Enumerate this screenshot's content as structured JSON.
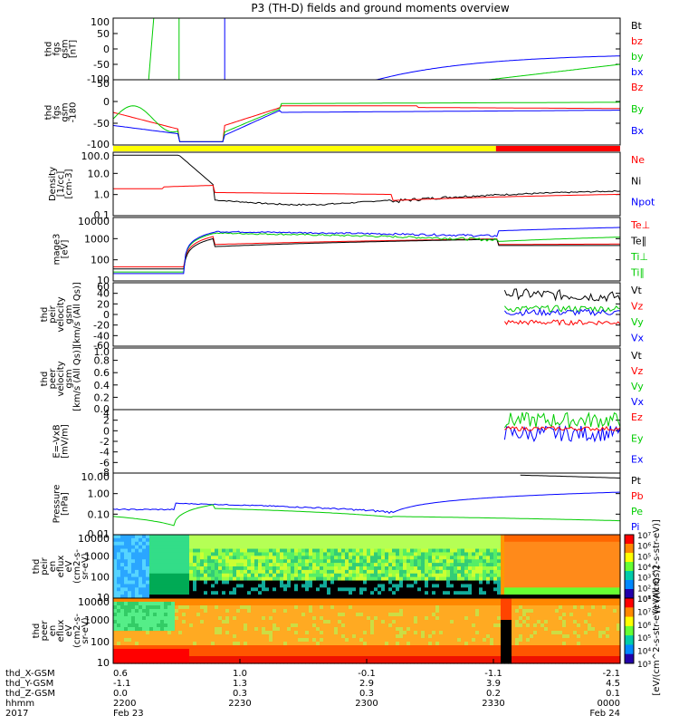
{
  "title": "P3 (TH-D) fields and ground moments overview",
  "colors": {
    "black": "#000000",
    "red": "#ff0000",
    "green": "#00cc00",
    "blue": "#0000ff",
    "yellow": "#ffff00"
  },
  "chart_data": [
    {
      "type": "line",
      "name": "fgs",
      "ylabel": [
        "thd",
        "fgs",
        "gsm",
        "[nT]"
      ],
      "ylim": [
        -100,
        100
      ],
      "ticks": [
        "100",
        "50",
        "0",
        "-50",
        "-100"
      ],
      "legend": [
        {
          "text": "Bt",
          "c": "black"
        },
        {
          "text": "bz",
          "c": "red"
        },
        {
          "text": "by",
          "c": "green"
        },
        {
          "text": "bx",
          "c": "blue"
        }
      ]
    },
    {
      "type": "line",
      "name": "fge",
      "ylabel": [
        "thd",
        "fgs",
        "gsm",
        "-180"
      ],
      "ylim": [
        -120,
        80
      ],
      "ticks": [
        "50",
        "0",
        "-50",
        "-100"
      ],
      "legend": [
        {
          "text": "Bz",
          "c": "red"
        },
        {
          "text": "By",
          "c": "green"
        },
        {
          "text": "Bx",
          "c": "blue"
        }
      ]
    },
    {
      "type": "line",
      "name": "density",
      "ylabel": [
        "Density",
        "[1/cc]",
        "[cm-3]"
      ],
      "scale": "log",
      "ylim": [
        0.05,
        300
      ],
      "ticks": [
        "100.0",
        "10.0",
        "1.0",
        "0.1"
      ],
      "legend": [
        {
          "text": "Ne",
          "c": "red"
        },
        {
          "text": "Ni",
          "c": "black"
        },
        {
          "text": "Npot",
          "c": "blue"
        }
      ]
    },
    {
      "type": "line",
      "name": "temp",
      "ylabel": [
        "mage3",
        "[eV]"
      ],
      "scale": "log",
      "ylim": [
        3,
        15000
      ],
      "ticks": [
        "10000",
        "1000",
        "100",
        "10"
      ],
      "legend": [
        {
          "text": "Te⊥",
          "c": "red"
        },
        {
          "text": "Te∥",
          "c": "black"
        },
        {
          "text": "Ti⊥",
          "c": "green"
        },
        {
          "text": "Ti∥",
          "c": "green"
        }
      ]
    },
    {
      "type": "line",
      "name": "peir_vel",
      "ylabel": [
        "thd",
        "peir",
        "velocity",
        "gsm",
        "[km/s (All Qs)]"
      ],
      "ylim": [
        -60,
        60
      ],
      "ticks": [
        "60",
        "40",
        "20",
        "0",
        "-20",
        "-40",
        "-60"
      ],
      "legend": [
        {
          "text": "Vt",
          "c": "black"
        },
        {
          "text": "Vz",
          "c": "red"
        },
        {
          "text": "Vy",
          "c": "green"
        },
        {
          "text": "Vx",
          "c": "blue"
        }
      ]
    },
    {
      "type": "line",
      "name": "peer_vel",
      "ylabel": [
        "thd",
        "peer",
        "velocity",
        "gsm",
        "[km/s (All Qs)]"
      ],
      "ylim": [
        0,
        1
      ],
      "ticks": [
        "1.0",
        "0.8",
        "0.6",
        "0.4",
        "0.2",
        "0.0"
      ],
      "legend": [
        {
          "text": "Vt",
          "c": "black"
        },
        {
          "text": "Vz",
          "c": "red"
        },
        {
          "text": "Vy",
          "c": "green"
        },
        {
          "text": "Vx",
          "c": "blue"
        }
      ]
    },
    {
      "type": "line",
      "name": "efield",
      "ylabel": [
        "E=-VxB",
        "[mV/m]"
      ],
      "ylim": [
        -8,
        4
      ],
      "ticks": [
        "4",
        "2",
        "0",
        "-2",
        "-4",
        "-6",
        "-8"
      ],
      "legend": [
        {
          "text": "Ez",
          "c": "red"
        },
        {
          "text": "Ey",
          "c": "green"
        },
        {
          "text": "Ex",
          "c": "blue"
        }
      ]
    },
    {
      "type": "line",
      "name": "pressure",
      "ylabel": [
        "Pressure",
        "[nPa]"
      ],
      "scale": "log",
      "ylim": [
        0.004,
        20
      ],
      "ticks": [
        "10.00",
        "1.00",
        "0.10",
        "0.01"
      ],
      "legend": [
        {
          "text": "Pt",
          "c": "black"
        },
        {
          "text": "Pb",
          "c": "red"
        },
        {
          "text": "Pe",
          "c": "green"
        },
        {
          "text": "Pi",
          "c": "blue"
        }
      ]
    },
    {
      "type": "heatmap",
      "name": "peir_spec",
      "ylabel": [
        "thd",
        "peir",
        "en",
        "eflux",
        "eV",
        "(cm2-s-",
        "sr-eV)"
      ],
      "scale": "log",
      "ylim": [
        7,
        20000
      ],
      "ticks": [
        "10000",
        "1000",
        "100",
        "10"
      ],
      "colorbar": {
        "ticks": [
          "10⁷",
          "10⁶",
          "10⁵",
          "10⁴",
          "10³",
          "10²",
          "10¹"
        ],
        "label": "[eV/(cm^2-s-str-eV)]"
      }
    },
    {
      "type": "heatmap",
      "name": "peer_spec",
      "ylabel": [
        "thd",
        "peer",
        "en",
        "eflux",
        "eV",
        "(cm2-s-",
        "sr-eV)"
      ],
      "scale": "log",
      "ylim": [
        7,
        20000
      ],
      "ticks": [
        "10000",
        "1000",
        "100",
        "10"
      ],
      "colorbar": {
        "ticks": [
          "10⁸",
          "10⁷",
          "10⁶",
          "10⁵",
          "10⁴",
          "10³"
        ],
        "label": "[eV/(cm^2-s-str-eV) (All Qs)]"
      }
    }
  ],
  "xaxis": {
    "rows": [
      {
        "label": "thd_X-GSM",
        "values": [
          "0.6",
          "1.0",
          "-0.1",
          "-1.1",
          "-2.1"
        ]
      },
      {
        "label": "thd_Y-GSM",
        "values": [
          "-1.1",
          "1.3",
          "2.9",
          "3.9",
          "4.5"
        ]
      },
      {
        "label": "thd_Z-GSM",
        "values": [
          "0.0",
          "0.3",
          "0.3",
          "0.2",
          "0.1"
        ]
      },
      {
        "label": "hhmm",
        "values": [
          "2200",
          "2230",
          "2300",
          "2330",
          "0000"
        ]
      },
      {
        "label": "2017",
        "values": [
          "Feb 23",
          "",
          "",
          "",
          "Feb 24"
        ]
      }
    ]
  },
  "status_bar": "yellow-red"
}
